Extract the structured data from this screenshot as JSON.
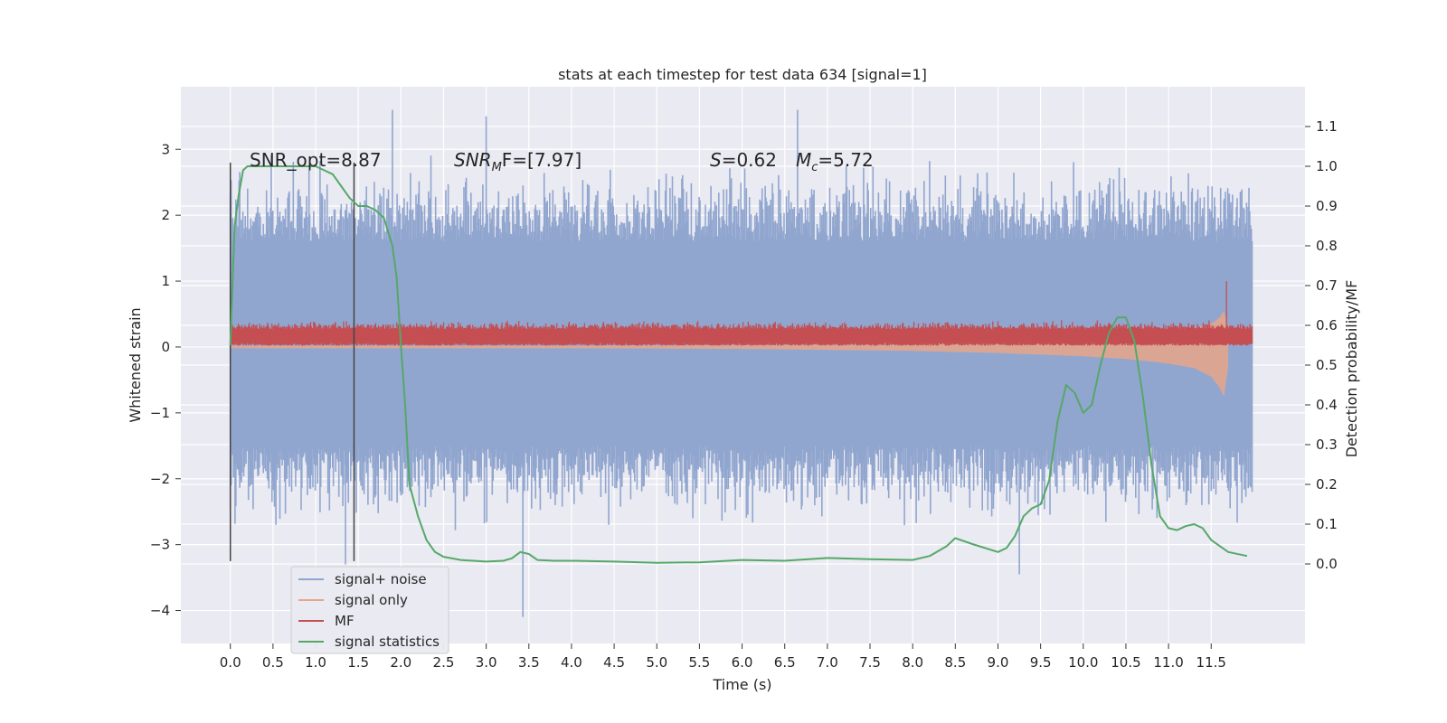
{
  "chart_data": {
    "type": "line",
    "title": "stats at each timestep for test data 634 [signal=1]",
    "xlabel": "Time (s)",
    "ylabel_left": "Whitened strain",
    "ylabel_right": "Detection probability/MF",
    "xlim": [
      -0.58,
      12.6
    ],
    "ylim_left": [
      -4.5,
      3.95
    ],
    "ylim_right": [
      -0.2,
      1.2
    ],
    "x_ticks": [
      "0.0",
      "0.5",
      "1.0",
      "1.5",
      "2.0",
      "2.5",
      "3.0",
      "3.5",
      "4.0",
      "4.5",
      "5.0",
      "5.5",
      "6.0",
      "6.5",
      "7.0",
      "7.5",
      "8.0",
      "8.5",
      "9.0",
      "9.5",
      "10.0",
      "10.5",
      "11.0",
      "11.5"
    ],
    "y_ticks_left": [
      "3",
      "2",
      "1",
      "0",
      "−1",
      "−2",
      "−3",
      "−4"
    ],
    "y_ticks_right": [
      "1.1",
      "1.0",
      "0.9",
      "0.8",
      "0.7",
      "0.6",
      "0.5",
      "0.4",
      "0.3",
      "0.2",
      "0.1",
      "0.0"
    ],
    "grid": true,
    "legend_position": "lower-left",
    "annotations": {
      "snr_opt": "SNR_opt=8.87",
      "snr_mf_main": "SNR",
      "snr_mf_sub": "M",
      "snr_mf_rest": "F=[7.97]",
      "s_main": "S",
      "s_rest": "=0.62",
      "mc_main": "M",
      "mc_sub": "c",
      "mc_rest": "=5.72"
    },
    "vertical_markers": [
      0.0,
      1.45
    ],
    "series": [
      {
        "name": "signal+ noise",
        "color": "#91a6cf",
        "kind": "noise-band",
        "axis": "left",
        "x_range": [
          0.0,
          11.98
        ],
        "typical_range": [
          -1.5,
          1.6
        ],
        "extremes": [
          [
            1.9,
            3.6
          ],
          [
            3.0,
            3.5
          ],
          [
            6.65,
            3.6
          ],
          [
            3.43,
            -4.1
          ],
          [
            9.25,
            -3.45
          ],
          [
            1.35,
            -3.3
          ]
        ]
      },
      {
        "name": "signal only",
        "color": "#e8a58a",
        "kind": "chirp-envelope",
        "axis": "left",
        "x": [
          0.0,
          4.0,
          6.0,
          8.0,
          9.0,
          10.0,
          10.5,
          11.0,
          11.3,
          11.5,
          11.6,
          11.65,
          11.7
        ],
        "upper": [
          0.02,
          0.02,
          0.03,
          0.05,
          0.08,
          0.12,
          0.16,
          0.22,
          0.28,
          0.35,
          0.45,
          0.55,
          0.3
        ],
        "lower": [
          -0.02,
          -0.02,
          -0.03,
          -0.06,
          -0.09,
          -0.14,
          -0.18,
          -0.25,
          -0.32,
          -0.45,
          -0.62,
          -0.75,
          -0.3
        ]
      },
      {
        "name": "MF",
        "color": "#c44e52",
        "kind": "noise-band",
        "axis": "left",
        "x_range": [
          0.0,
          11.98
        ],
        "typical_range": [
          0.02,
          0.32
        ],
        "peak": [
          11.68,
          1.0
        ]
      },
      {
        "name": "signal statistics",
        "color": "#55a868",
        "kind": "line",
        "axis": "right",
        "x": [
          0.0,
          0.05,
          0.1,
          0.15,
          0.2,
          0.3,
          0.5,
          0.8,
          1.0,
          1.1,
          1.2,
          1.3,
          1.4,
          1.5,
          1.6,
          1.7,
          1.8,
          1.9,
          1.95,
          2.0,
          2.05,
          2.1,
          2.2,
          2.3,
          2.4,
          2.5,
          2.7,
          3.0,
          3.2,
          3.3,
          3.4,
          3.5,
          3.6,
          3.8,
          4.0,
          4.5,
          5.0,
          5.5,
          6.0,
          6.5,
          7.0,
          7.5,
          8.0,
          8.2,
          8.4,
          8.5,
          8.7,
          9.0,
          9.1,
          9.2,
          9.3,
          9.4,
          9.5,
          9.6,
          9.7,
          9.8,
          9.9,
          10.0,
          10.1,
          10.2,
          10.3,
          10.4,
          10.5,
          10.6,
          10.7,
          10.8,
          10.9,
          11.0,
          11.1,
          11.2,
          11.3,
          11.4,
          11.5,
          11.7,
          11.92
        ],
        "y": [
          0.55,
          0.85,
          0.93,
          0.99,
          1.0,
          1.0,
          1.0,
          1.0,
          1.0,
          0.99,
          0.98,
          0.95,
          0.92,
          0.9,
          0.9,
          0.89,
          0.87,
          0.8,
          0.72,
          0.55,
          0.4,
          0.2,
          0.12,
          0.06,
          0.03,
          0.018,
          0.01,
          0.006,
          0.008,
          0.014,
          0.03,
          0.025,
          0.01,
          0.008,
          0.008,
          0.006,
          0.003,
          0.004,
          0.01,
          0.008,
          0.015,
          0.012,
          0.01,
          0.02,
          0.045,
          0.065,
          0.05,
          0.03,
          0.04,
          0.07,
          0.12,
          0.14,
          0.15,
          0.21,
          0.36,
          0.45,
          0.43,
          0.38,
          0.4,
          0.5,
          0.58,
          0.62,
          0.62,
          0.56,
          0.42,
          0.25,
          0.12,
          0.09,
          0.085,
          0.095,
          0.1,
          0.09,
          0.06,
          0.03,
          0.02
        ]
      }
    ]
  }
}
